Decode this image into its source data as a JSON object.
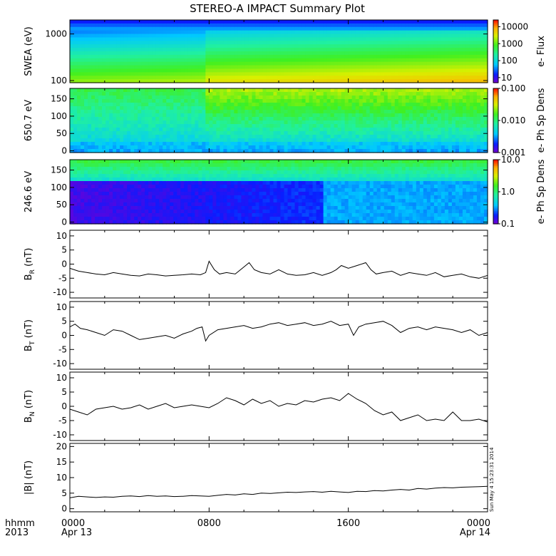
{
  "title": "STEREO-A IMPACT Summary Plot",
  "timestamp_label": "Sun May  4 15:23:31 2014",
  "x_axis": {
    "row1_prefix": "hhmm",
    "row2_prefix": "2013",
    "ticks": [
      {
        "hours": 0,
        "time": "0000",
        "date": "Apr 13"
      },
      {
        "hours": 8,
        "time": "0800",
        "date": ""
      },
      {
        "hours": 16,
        "time": "1600",
        "date": ""
      },
      {
        "hours": 24,
        "time": "0000",
        "date": "Apr 14"
      }
    ],
    "range_hours": [
      0,
      24
    ]
  },
  "chart_data": [
    {
      "type": "heatmap",
      "panel": "swea",
      "ylabel": "SWEA (eV)",
      "yscale": "log",
      "ylim": [
        90,
        2000
      ],
      "yticks": [
        {
          "v": 100,
          "label": "100"
        },
        {
          "v": 1000,
          "label": "1000"
        }
      ],
      "colorbar": {
        "label": "e- Flux",
        "scale": "log",
        "range": [
          5,
          25000
        ],
        "ticks": [
          {
            "v": 10,
            "label": "10"
          },
          {
            "v": 100,
            "label": "100"
          },
          {
            "v": 1000,
            "label": "1000"
          },
          {
            "v": 10000,
            "label": "10000"
          }
        ]
      }
    },
    {
      "type": "heatmap",
      "panel": "pad650",
      "ylabel": "650.7 eV",
      "ylim": [
        -5,
        180
      ],
      "yticks": [
        {
          "v": 0,
          "label": "0"
        },
        {
          "v": 50,
          "label": "50"
        },
        {
          "v": 100,
          "label": "100"
        },
        {
          "v": 150,
          "label": "150"
        }
      ],
      "colorbar": {
        "label": "e- Ph Sp Dens",
        "scale": "log",
        "range": [
          0.001,
          0.1
        ],
        "ticks": [
          {
            "v": 0.001,
            "label": "0.001"
          },
          {
            "v": 0.01,
            "label": "0.010"
          },
          {
            "v": 0.1,
            "label": "0.100"
          }
        ]
      }
    },
    {
      "type": "heatmap",
      "panel": "pad246",
      "ylabel": "246.6 eV",
      "ylim": [
        -5,
        180
      ],
      "yticks": [
        {
          "v": 0,
          "label": "0"
        },
        {
          "v": 50,
          "label": "50"
        },
        {
          "v": 100,
          "label": "100"
        },
        {
          "v": 150,
          "label": "150"
        }
      ],
      "colorbar": {
        "label": "e- Ph Sp Dens",
        "scale": "log",
        "range": [
          0.1,
          10
        ],
        "ticks": [
          {
            "v": 0.1,
            "label": "0.1"
          },
          {
            "v": 1,
            "label": "1.0"
          },
          {
            "v": 10,
            "label": "10.0"
          }
        ]
      }
    },
    {
      "type": "line",
      "panel": "br",
      "ylabel_main": "B",
      "ylabel_sub": "R",
      "ylabel_unit": " (nT)",
      "ylim": [
        -12,
        12
      ],
      "yticks": [
        {
          "v": -10,
          "label": "-10"
        },
        {
          "v": -5,
          "label": "-5"
        },
        {
          "v": 0,
          "label": "0"
        },
        {
          "v": 5,
          "label": "5"
        },
        {
          "v": 10,
          "label": "10"
        }
      ],
      "x": [
        0,
        0.5,
        1,
        1.5,
        2,
        2.5,
        3,
        3.5,
        4,
        4.5,
        5,
        5.5,
        6,
        6.5,
        7,
        7.5,
        7.8,
        8,
        8.3,
        8.6,
        9,
        9.5,
        10,
        10.3,
        10.6,
        11,
        11.5,
        12,
        12.5,
        13,
        13.5,
        14,
        14.5,
        15,
        15.3,
        15.6,
        16,
        16.5,
        17,
        17.3,
        17.6,
        18,
        18.5,
        19,
        19.5,
        20,
        20.5,
        21,
        21.5,
        22,
        22.5,
        23,
        23.5,
        24
      ],
      "values": [
        -1.5,
        -2.5,
        -3,
        -3.5,
        -3.8,
        -3,
        -3.5,
        -4,
        -4.2,
        -3.5,
        -3.8,
        -4.2,
        -4,
        -3.8,
        -3.5,
        -3.8,
        -3,
        1,
        -2,
        -3.5,
        -3,
        -3.5,
        -1,
        0.5,
        -2,
        -3,
        -3.5,
        -2,
        -3.5,
        -4,
        -3.8,
        -3,
        -4,
        -3,
        -2,
        -0.5,
        -1.5,
        -0.5,
        0.5,
        -2,
        -3.5,
        -3,
        -2.5,
        -4,
        -3,
        -3.5,
        -4,
        -3,
        -4.5,
        -4,
        -3.5,
        -4.5,
        -5,
        -4
      ]
    },
    {
      "type": "line",
      "panel": "bt",
      "ylabel_main": "B",
      "ylabel_sub": "T",
      "ylabel_unit": " (nT)",
      "ylim": [
        -12,
        12
      ],
      "yticks": [
        {
          "v": -10,
          "label": "-10"
        },
        {
          "v": -5,
          "label": "-5"
        },
        {
          "v": 0,
          "label": "0"
        },
        {
          "v": 5,
          "label": "5"
        },
        {
          "v": 10,
          "label": "10"
        }
      ],
      "x": [
        0,
        0.3,
        0.6,
        1,
        1.5,
        2,
        2.5,
        3,
        3.5,
        4,
        4.5,
        5,
        5.5,
        6,
        6.5,
        7,
        7.3,
        7.6,
        7.8,
        8,
        8.5,
        9,
        9.5,
        10,
        10.5,
        11,
        11.5,
        12,
        12.5,
        13,
        13.5,
        14,
        14.5,
        15,
        15.5,
        16,
        16.3,
        16.6,
        17,
        17.5,
        18,
        18.5,
        19,
        19.5,
        20,
        20.5,
        21,
        21.5,
        22,
        22.5,
        23,
        23.5,
        24
      ],
      "values": [
        3,
        4,
        2.5,
        2,
        1,
        0,
        2,
        1.5,
        0,
        -1.5,
        -1,
        -0.5,
        0,
        -1,
        0.5,
        1.5,
        2.5,
        3,
        -2,
        0,
        2,
        2.5,
        3,
        3.5,
        2.5,
        3,
        4,
        4.5,
        3.5,
        4,
        4.5,
        3.5,
        4,
        5,
        3.5,
        4,
        0,
        3,
        4,
        4.5,
        5,
        3.5,
        1,
        2.5,
        3,
        2,
        3,
        2.5,
        2,
        1,
        2,
        0,
        1
      ]
    },
    {
      "type": "line",
      "panel": "bn",
      "ylabel_main": "B",
      "ylabel_sub": "N",
      "ylabel_unit": " (nT)",
      "ylim": [
        -12,
        12
      ],
      "yticks": [
        {
          "v": -10,
          "label": "-10"
        },
        {
          "v": -5,
          "label": "-5"
        },
        {
          "v": 0,
          "label": "0"
        },
        {
          "v": 5,
          "label": "5"
        },
        {
          "v": 10,
          "label": "10"
        }
      ],
      "x": [
        0,
        0.5,
        1,
        1.5,
        2,
        2.5,
        3,
        3.5,
        4,
        4.5,
        5,
        5.5,
        6,
        6.5,
        7,
        7.5,
        8,
        8.5,
        9,
        9.5,
        10,
        10.5,
        11,
        11.5,
        12,
        12.5,
        13,
        13.5,
        14,
        14.5,
        15,
        15.5,
        16,
        16.5,
        17,
        17.5,
        18,
        18.5,
        19,
        19.5,
        20,
        20.5,
        21,
        21.5,
        22,
        22.5,
        23,
        23.5,
        24
      ],
      "values": [
        -1,
        -2,
        -3,
        -1,
        -0.5,
        0,
        -1,
        -0.5,
        0.5,
        -1,
        0,
        1,
        -0.5,
        0,
        0.5,
        0,
        -0.5,
        1,
        3,
        2,
        0.5,
        2.5,
        1,
        2,
        0,
        1,
        0.5,
        2,
        1.5,
        2.5,
        3,
        2,
        4.5,
        2.5,
        1,
        -1.5,
        -3,
        -2,
        -5,
        -4,
        -3,
        -5,
        -4.5,
        -5,
        -2,
        -5,
        -5,
        -4.5,
        -5.5
      ]
    },
    {
      "type": "line",
      "panel": "bmag",
      "ylabel_main": "|B| (nT)",
      "ylim": [
        -1,
        21
      ],
      "yticks": [
        {
          "v": 0,
          "label": "0"
        },
        {
          "v": 5,
          "label": "5"
        },
        {
          "v": 10,
          "label": "10"
        },
        {
          "v": 15,
          "label": "15"
        },
        {
          "v": 20,
          "label": "20"
        }
      ],
      "x": [
        0,
        0.5,
        1,
        1.5,
        2,
        2.5,
        3,
        3.5,
        4,
        4.5,
        5,
        5.5,
        6,
        6.5,
        7,
        7.5,
        8,
        8.5,
        9,
        9.5,
        10,
        10.5,
        11,
        11.5,
        12,
        12.5,
        13,
        13.5,
        14,
        14.5,
        15,
        15.5,
        16,
        16.5,
        17,
        17.5,
        18,
        18.5,
        19,
        19.5,
        20,
        20.5,
        21,
        21.5,
        22,
        22.5,
        23,
        23.5,
        24
      ],
      "values": [
        3.5,
        4,
        3.8,
        3.6,
        3.8,
        3.7,
        4,
        4.1,
        3.9,
        4.2,
        4,
        4.1,
        3.9,
        4,
        4.2,
        4.1,
        4,
        4.3,
        4.6,
        4.4,
        4.8,
        4.6,
        5,
        4.9,
        5.1,
        5.3,
        5.2,
        5.4,
        5.5,
        5.3,
        5.6,
        5.4,
        5.2,
        5.6,
        5.5,
        5.8,
        5.7,
        6,
        6.2,
        6,
        6.5,
        6.3,
        6.6,
        6.8,
        6.7,
        6.9,
        7,
        7.1,
        7.2
      ]
    }
  ]
}
